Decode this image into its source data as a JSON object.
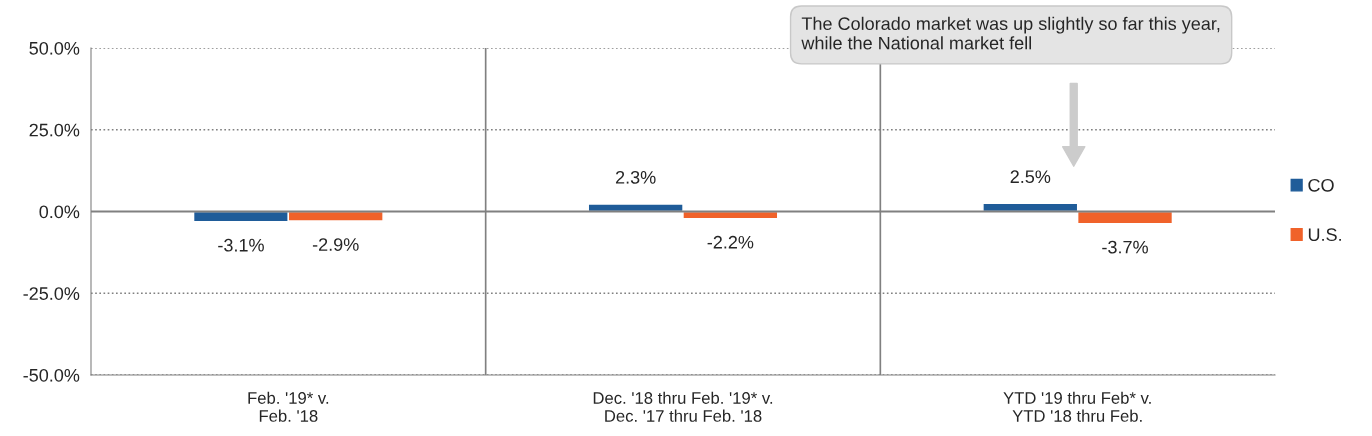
{
  "chart_data": {
    "type": "bar",
    "categories": [
      "Feb. '19* v.\nFeb. '18",
      "Dec. '18 thru Feb. '19* v.\nDec. '17 thru Feb. '18",
      "YTD '19 thru Feb* v.\nYTD '18 thru Feb."
    ],
    "series": [
      {
        "name": "CO",
        "color": "#1f5c99",
        "values": [
          -3.1,
          2.3,
          2.5
        ],
        "value_labels": [
          "-3.1%",
          "2.3%",
          "2.5%"
        ]
      },
      {
        "name": "U.S.",
        "color": "#f0622a",
        "values": [
          -2.9,
          -2.2,
          -3.7
        ],
        "value_labels": [
          "-2.9%",
          "-2.2%",
          "-3.7%"
        ]
      }
    ],
    "ylim": [
      -50,
      50
    ],
    "yticks": [
      {
        "value": -50,
        "label": "-50.0%"
      },
      {
        "value": -25,
        "label": "-25.0%"
      },
      {
        "value": 0,
        "label": "0.0%"
      },
      {
        "value": 25,
        "label": "25.0%"
      },
      {
        "value": 50,
        "label": "50.0%"
      }
    ],
    "grid": true,
    "legend": "right",
    "annotations": [
      "The Colorado market was up slightly so far this year,\nwhile the National market fell"
    ]
  }
}
